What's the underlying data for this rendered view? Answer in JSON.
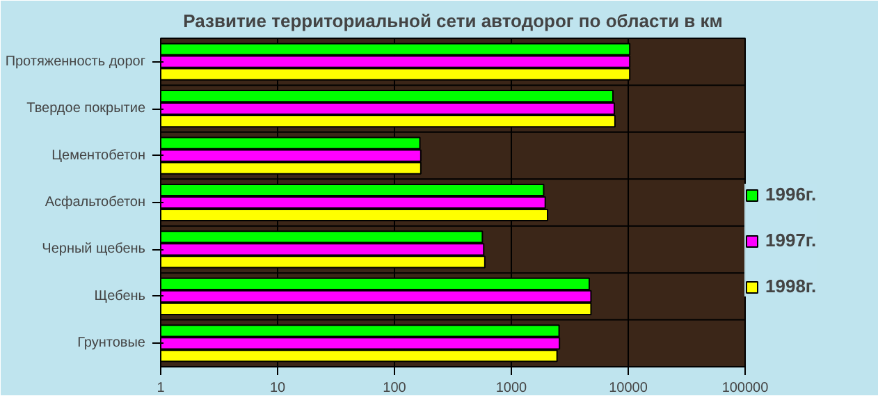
{
  "chart_data": {
    "type": "bar",
    "orientation": "horizontal",
    "title": "Развитие территориальной сети автодорог по области в км",
    "categories": [
      "Протяженность дорог",
      "Твердое покрытие",
      "Цементобетон",
      "Асфальтобетон",
      "Черный щебень",
      "Щебень",
      "Грунтовые"
    ],
    "series": [
      {
        "name": "1996г.",
        "color": "#00ff00",
        "values": [
          10300,
          7400,
          165,
          1890,
          565,
          4640,
          2560
        ]
      },
      {
        "name": "1997г.",
        "color": "#ff00ff",
        "values": [
          10300,
          7600,
          168,
          1950,
          580,
          4800,
          2580
        ]
      },
      {
        "name": "1998г.",
        "color": "#ffff00",
        "values": [
          10300,
          7700,
          168,
          2040,
          593,
          4800,
          2460
        ]
      }
    ],
    "log": "x",
    "xlim": [
      1,
      100000
    ],
    "xticks": [
      1,
      10,
      100,
      1000,
      10000,
      100000
    ],
    "grid": true,
    "legend": "right"
  }
}
